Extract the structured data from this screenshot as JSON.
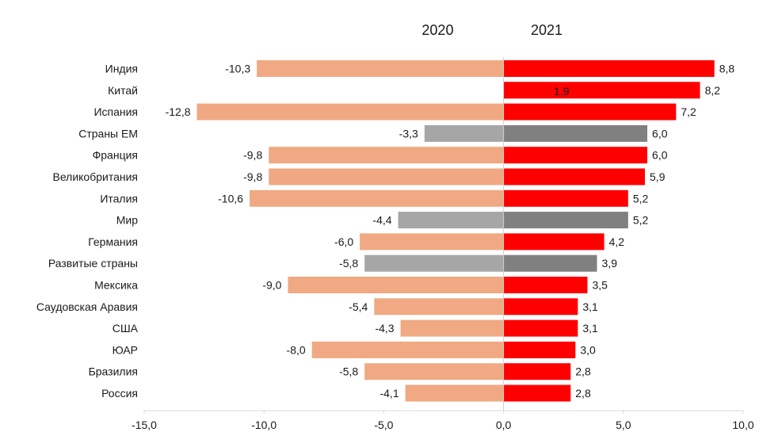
{
  "chart_data": {
    "type": "bar",
    "orientation": "horizontal",
    "series_headers": [
      "2020",
      "2021"
    ],
    "categories": [
      "Индия",
      "Китай",
      "Испания",
      "Страны ЕМ",
      "Франция",
      "Великобритания",
      "Италия",
      "Мир",
      "Германия",
      "Развитые страны",
      "Мексика",
      "Саудовская Аравия",
      "США",
      "ЮАР",
      "Бразилия",
      "Россия"
    ],
    "series": [
      {
        "name": "2020",
        "values": [
          -10.3,
          1.9,
          -12.8,
          -3.3,
          -9.8,
          -9.8,
          -10.6,
          -4.4,
          -6.0,
          -5.8,
          -9.0,
          -5.4,
          -4.3,
          -8.0,
          -5.8,
          -4.1
        ],
        "labels": [
          "-10,3",
          "1,9",
          "-12,8",
          "-3,3",
          "-9,8",
          "-9,8",
          "-10,6",
          "-4,4",
          "-6,0",
          "-5,8",
          "-9,0",
          "-5,4",
          "-4,3",
          "-8,0",
          "-5,8",
          "-4,1"
        ]
      },
      {
        "name": "2021",
        "values": [
          8.8,
          8.2,
          7.2,
          6.0,
          6.0,
          5.9,
          5.2,
          5.2,
          4.2,
          3.9,
          3.5,
          3.1,
          3.1,
          3.0,
          2.8,
          2.8
        ],
        "labels": [
          "8,8",
          "8,2",
          "7,2",
          "6,0",
          "6,0",
          "5,9",
          "5,2",
          "5,2",
          "4,2",
          "3,9",
          "3,5",
          "3,1",
          "3,1",
          "3,0",
          "2,8",
          "2,8"
        ]
      }
    ],
    "xlim": [
      -15,
      10
    ],
    "xticks": [
      -15,
      -10,
      -5,
      0,
      5,
      10
    ],
    "xtick_labels": [
      "-15,0",
      "-10,0",
      "-5,0",
      "0,0",
      "5,0",
      "10,0"
    ],
    "grid": false,
    "aggregate_categories": [
      "Страны ЕМ",
      "Мир",
      "Развитые страны"
    ],
    "colors": {
      "2020_country": "#f0a982",
      "2020_positive": "#f3b87c",
      "2020_aggregate": "#a6a6a6",
      "2021_country": "#ff0000",
      "2021_aggregate": "#808080",
      "axis": "#cfcfcf",
      "text": "#1a1a1a"
    }
  }
}
